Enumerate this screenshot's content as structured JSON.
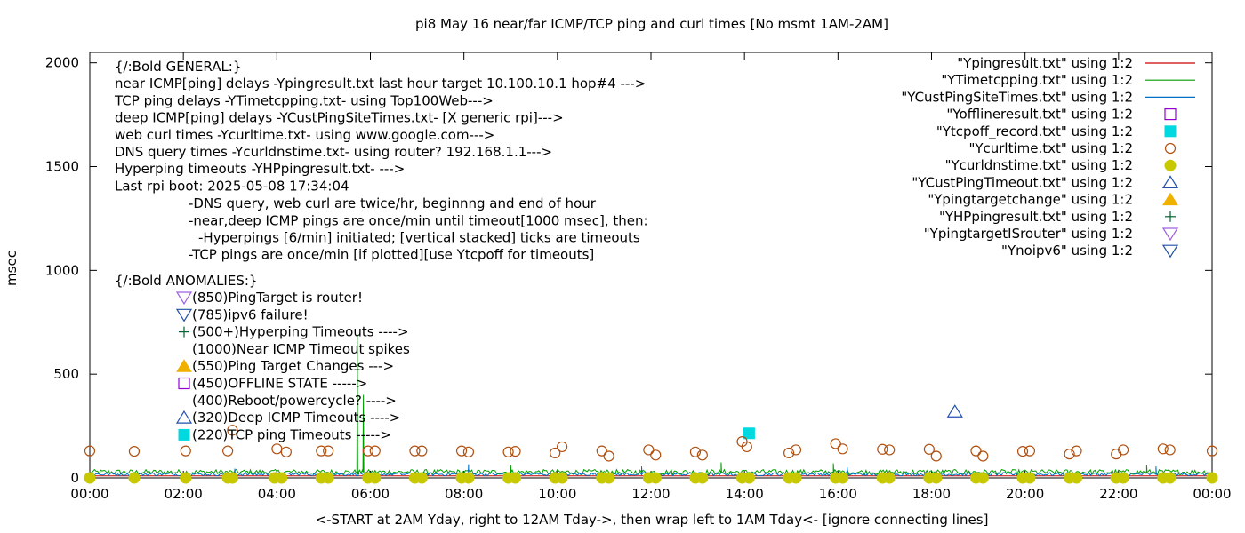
{
  "chart_data": {
    "type": "line",
    "title": "pi8 May 16  near/far ICMP/TCP ping and curl times [No msmt 1AM-2AM]",
    "xlabel": "<-START at 2AM Yday, right to 12AM Tday->, then wrap left to 1AM Tday<- [ignore connecting lines]",
    "ylabel": "msec",
    "xlim": [
      "00:00",
      "24:00"
    ],
    "ylim": [
      0,
      2050
    ],
    "x_ticks": [
      "00:00",
      "02:00",
      "04:00",
      "06:00",
      "08:00",
      "10:00",
      "12:00",
      "14:00",
      "16:00",
      "18:00",
      "20:00",
      "22:00",
      "00:00"
    ],
    "y_ticks": [
      "0",
      "500",
      "1000",
      "1500",
      "2000"
    ],
    "grid": false,
    "legend_position": "top-right",
    "legend": [
      {
        "label": "\"Ypingresult.txt\" using 1:2",
        "marker": "line",
        "color": "#cc0000"
      },
      {
        "label": "\"YTimetcpping.txt\" using 1:2",
        "marker": "line",
        "color": "#009e00"
      },
      {
        "label": "\"YCustPingSiteTimes.txt\" using 1:2",
        "marker": "line",
        "color": "#0072c6"
      },
      {
        "label": "\"Yofflineresult.txt\" using 1:2",
        "marker": "open-square",
        "color": "#9400d3"
      },
      {
        "label": "\"Ytcpoff_record.txt\" using 1:2",
        "marker": "filled-square",
        "color": "#00d9e0"
      },
      {
        "label": "\"Ycurltime.txt\" using 1:2",
        "marker": "open-circle",
        "color": "#b05010"
      },
      {
        "label": "\"Ycurldnstime.txt\" using 1:2",
        "marker": "filled-circle",
        "color": "#c8c800"
      },
      {
        "label": "\"YCustPingTimeout.txt\" using 1:2",
        "marker": "open-triangle-up",
        "color": "#2050b0"
      },
      {
        "label": "\"Ypingtargetchange\" using 1:2",
        "marker": "filled-triangle-up",
        "color": "#f0b000"
      },
      {
        "label": "\"YHPpingresult.txt\" using 1:2",
        "marker": "plus",
        "color": "#006030"
      },
      {
        "label": "\"YpingtargetISrouter\" using 1:2",
        "marker": "open-triangle-down",
        "color": "#a060e0"
      },
      {
        "label": "\"Ynoipv6\" using 1:2",
        "marker": "open-triangle-down",
        "color": "#2050a0"
      }
    ],
    "notes": [
      "{/:Bold GENERAL:}",
      "near ICMP[ping] delays -Ypingresult.txt last hour target 10.100.10.1 hop#4 --->",
      "TCP ping delays -YTimetcpping.txt- using Top100Web--->",
      "deep ICMP[ping] delays -YCustPingSiteTimes.txt- [X generic rpi]--->",
      "web curl times -Ycurltime.txt- using www.google.com--->",
      "DNS query times -Ycurldnstime.txt- using router? 192.168.1.1--->",
      "Hyperping timeouts -YHPpingresult.txt- --->",
      "Last rpi boot: 2025-05-08 17:34:04"
    ],
    "notes_indented": [
      "-DNS query, web curl are twice/hr, beginnng and end of hour",
      "-near,deep ICMP pings are once/min until timeout[1000 msec], then:",
      "  -Hyperpings [6/min] initiated; [vertical stacked] ticks are timeouts",
      "-TCP pings are once/min [if plotted][use Ytcpoff for timeouts]"
    ],
    "anomalies_title": "{/:Bold ANOMALIES:}",
    "anomalies": [
      {
        "text": "(850)PingTarget is router!",
        "marker": "open-triangle-down",
        "color": "#a060e0"
      },
      {
        "text": "(785)ipv6 failure!",
        "marker": "open-triangle-down",
        "color": "#2050a0"
      },
      {
        "text": "(500+)Hyperping Timeouts ---->",
        "marker": "plus",
        "color": "#006030"
      },
      {
        "text": "(1000)Near ICMP Timeout spikes",
        "marker": "none",
        "color": "#000000"
      },
      {
        "text": "(550)Ping Target Changes --->",
        "marker": "filled-triangle-up",
        "color": "#f0b000"
      },
      {
        "text": "(450)OFFLINE STATE ----->",
        "marker": "open-square",
        "color": "#9400d3"
      },
      {
        "text": "(400)Reboot/powercycle? ---->",
        "marker": "none",
        "color": "#000000"
      },
      {
        "text": "(320)Deep ICMP Timeouts ---->",
        "marker": "open-triangle-up",
        "color": "#2050b0"
      },
      {
        "text": "(220)TCP ping Timeouts ----->",
        "marker": "filled-square",
        "color": "#00d9e0"
      }
    ],
    "series": [
      {
        "name": "\"Ypingresult.txt\" using 1:2",
        "color": "#cc0000",
        "description": "near ICMP ping delays, flat near 10 msec",
        "x_hours": [
          0,
          24
        ],
        "y": [
          10,
          10
        ]
      },
      {
        "name": "\"YTimetcpping.txt\" using 1:2",
        "color": "#009e00",
        "baseline": 28,
        "spikes": [
          {
            "x_hours": 5.72,
            "y": 690
          },
          {
            "x_hours": 5.85,
            "y": 400
          },
          {
            "x_hours": 9.0,
            "y": 60
          },
          {
            "x_hours": 13.5,
            "y": 75
          },
          {
            "x_hours": 15.9,
            "y": 70
          },
          {
            "x_hours": 22.6,
            "y": 60
          }
        ]
      },
      {
        "name": "\"YCustPingSiteTimes.txt\" using 1:2",
        "color": "#0072c6",
        "baseline": 18,
        "spikes": [
          {
            "x_hours": 3.1,
            "y": 45
          },
          {
            "x_hours": 8.1,
            "y": 65
          },
          {
            "x_hours": 11.8,
            "y": 55
          },
          {
            "x_hours": 16.2,
            "y": 50
          },
          {
            "x_hours": 22.8,
            "y": 55
          }
        ]
      }
    ],
    "points": {
      "\"Ytcpoff_record.txt\" using 1:2": [
        {
          "x_hours": 14.1,
          "y": 215
        }
      ],
      "\"YCustPingTimeout.txt\" using 1:2": [
        {
          "x_hours": 18.5,
          "y": 320
        }
      ],
      "\"Ycurltime.txt\" using 1:2": [
        {
          "x_hours": 0.0,
          "y": 130
        },
        {
          "x_hours": 0.95,
          "y": 128
        },
        {
          "x_hours": 2.05,
          "y": 130
        },
        {
          "x_hours": 2.95,
          "y": 130
        },
        {
          "x_hours": 3.05,
          "y": 230
        },
        {
          "x_hours": 4.0,
          "y": 140
        },
        {
          "x_hours": 4.2,
          "y": 125
        },
        {
          "x_hours": 4.95,
          "y": 130
        },
        {
          "x_hours": 5.1,
          "y": 130
        },
        {
          "x_hours": 5.95,
          "y": 130
        },
        {
          "x_hours": 6.1,
          "y": 130
        },
        {
          "x_hours": 6.95,
          "y": 130
        },
        {
          "x_hours": 7.1,
          "y": 130
        },
        {
          "x_hours": 7.95,
          "y": 130
        },
        {
          "x_hours": 8.1,
          "y": 125
        },
        {
          "x_hours": 8.95,
          "y": 125
        },
        {
          "x_hours": 9.1,
          "y": 128
        },
        {
          "x_hours": 9.95,
          "y": 120
        },
        {
          "x_hours": 10.1,
          "y": 150
        },
        {
          "x_hours": 10.95,
          "y": 130
        },
        {
          "x_hours": 11.1,
          "y": 105
        },
        {
          "x_hours": 11.95,
          "y": 135
        },
        {
          "x_hours": 12.1,
          "y": 110
        },
        {
          "x_hours": 12.95,
          "y": 125
        },
        {
          "x_hours": 13.1,
          "y": 110
        },
        {
          "x_hours": 13.95,
          "y": 175
        },
        {
          "x_hours": 14.05,
          "y": 150
        },
        {
          "x_hours": 14.95,
          "y": 120
        },
        {
          "x_hours": 15.1,
          "y": 135
        },
        {
          "x_hours": 15.95,
          "y": 165
        },
        {
          "x_hours": 16.1,
          "y": 140
        },
        {
          "x_hours": 16.95,
          "y": 138
        },
        {
          "x_hours": 17.1,
          "y": 135
        },
        {
          "x_hours": 17.95,
          "y": 138
        },
        {
          "x_hours": 18.1,
          "y": 105
        },
        {
          "x_hours": 18.95,
          "y": 130
        },
        {
          "x_hours": 19.1,
          "y": 105
        },
        {
          "x_hours": 19.95,
          "y": 128
        },
        {
          "x_hours": 20.1,
          "y": 130
        },
        {
          "x_hours": 20.95,
          "y": 115
        },
        {
          "x_hours": 21.1,
          "y": 130
        },
        {
          "x_hours": 21.95,
          "y": 115
        },
        {
          "x_hours": 22.1,
          "y": 135
        },
        {
          "x_hours": 22.95,
          "y": 140
        },
        {
          "x_hours": 23.1,
          "y": 135
        },
        {
          "x_hours": 24.0,
          "y": 130
        }
      ],
      "\"Ycurldnstime.txt\" using 1:2": [
        {
          "x_hours": 0.0,
          "y": 0
        },
        {
          "x_hours": 0.95,
          "y": 0
        },
        {
          "x_hours": 2.05,
          "y": 0
        },
        {
          "x_hours": 2.95,
          "y": 0
        },
        {
          "x_hours": 3.05,
          "y": 0
        },
        {
          "x_hours": 3.95,
          "y": 0
        },
        {
          "x_hours": 4.1,
          "y": 0
        },
        {
          "x_hours": 4.95,
          "y": 0
        },
        {
          "x_hours": 5.1,
          "y": 0
        },
        {
          "x_hours": 5.95,
          "y": 0
        },
        {
          "x_hours": 6.1,
          "y": 0
        },
        {
          "x_hours": 6.95,
          "y": 0
        },
        {
          "x_hours": 7.1,
          "y": 0
        },
        {
          "x_hours": 7.95,
          "y": 0
        },
        {
          "x_hours": 8.1,
          "y": 0
        },
        {
          "x_hours": 8.95,
          "y": 0
        },
        {
          "x_hours": 9.1,
          "y": 0
        },
        {
          "x_hours": 9.95,
          "y": 0
        },
        {
          "x_hours": 10.1,
          "y": 0
        },
        {
          "x_hours": 10.95,
          "y": 0
        },
        {
          "x_hours": 11.1,
          "y": 0
        },
        {
          "x_hours": 11.95,
          "y": 0
        },
        {
          "x_hours": 12.1,
          "y": 0
        },
        {
          "x_hours": 12.95,
          "y": 0
        },
        {
          "x_hours": 13.1,
          "y": 0
        },
        {
          "x_hours": 13.95,
          "y": 0
        },
        {
          "x_hours": 14.1,
          "y": 0
        },
        {
          "x_hours": 14.95,
          "y": 0
        },
        {
          "x_hours": 15.1,
          "y": 0
        },
        {
          "x_hours": 15.95,
          "y": 0
        },
        {
          "x_hours": 16.1,
          "y": 0
        },
        {
          "x_hours": 16.95,
          "y": 0
        },
        {
          "x_hours": 17.1,
          "y": 0
        },
        {
          "x_hours": 17.95,
          "y": 0
        },
        {
          "x_hours": 18.1,
          "y": 0
        },
        {
          "x_hours": 18.95,
          "y": 0
        },
        {
          "x_hours": 19.1,
          "y": 0
        },
        {
          "x_hours": 19.95,
          "y": 0
        },
        {
          "x_hours": 20.1,
          "y": 0
        },
        {
          "x_hours": 20.95,
          "y": 0
        },
        {
          "x_hours": 21.1,
          "y": 0
        },
        {
          "x_hours": 21.95,
          "y": 0
        },
        {
          "x_hours": 22.1,
          "y": 0
        },
        {
          "x_hours": 22.95,
          "y": 0
        },
        {
          "x_hours": 23.1,
          "y": 0
        },
        {
          "x_hours": 24.0,
          "y": 0
        }
      ]
    }
  }
}
